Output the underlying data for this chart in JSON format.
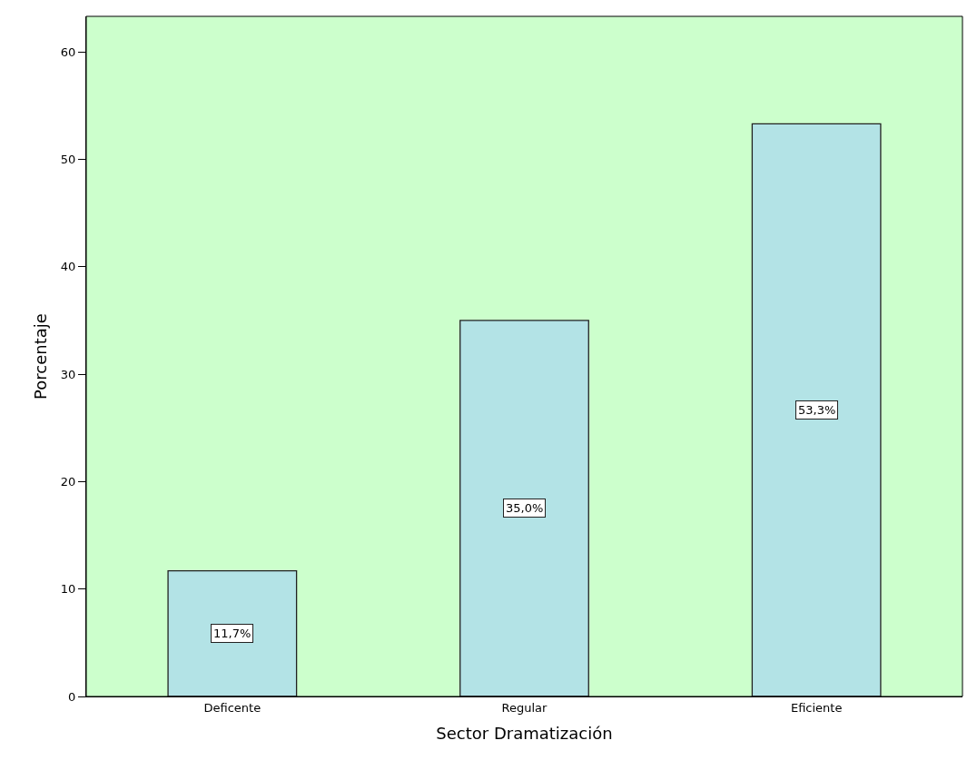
{
  "chart_data": {
    "type": "bar",
    "xlabel": "Sector Dramatización",
    "ylabel": "Porcentaje",
    "categories": [
      "Deficente",
      "Regular",
      "Eficiente"
    ],
    "values": [
      11.7,
      35.0,
      53.3
    ],
    "value_labels": [
      "11,7%",
      "35,0%",
      "53,3%"
    ],
    "color": "#b3e3e6",
    "ylim": [
      0,
      63.3
    ],
    "yticks": [
      0,
      10,
      20,
      30,
      40,
      50,
      60
    ],
    "grid": false,
    "legend": false
  }
}
